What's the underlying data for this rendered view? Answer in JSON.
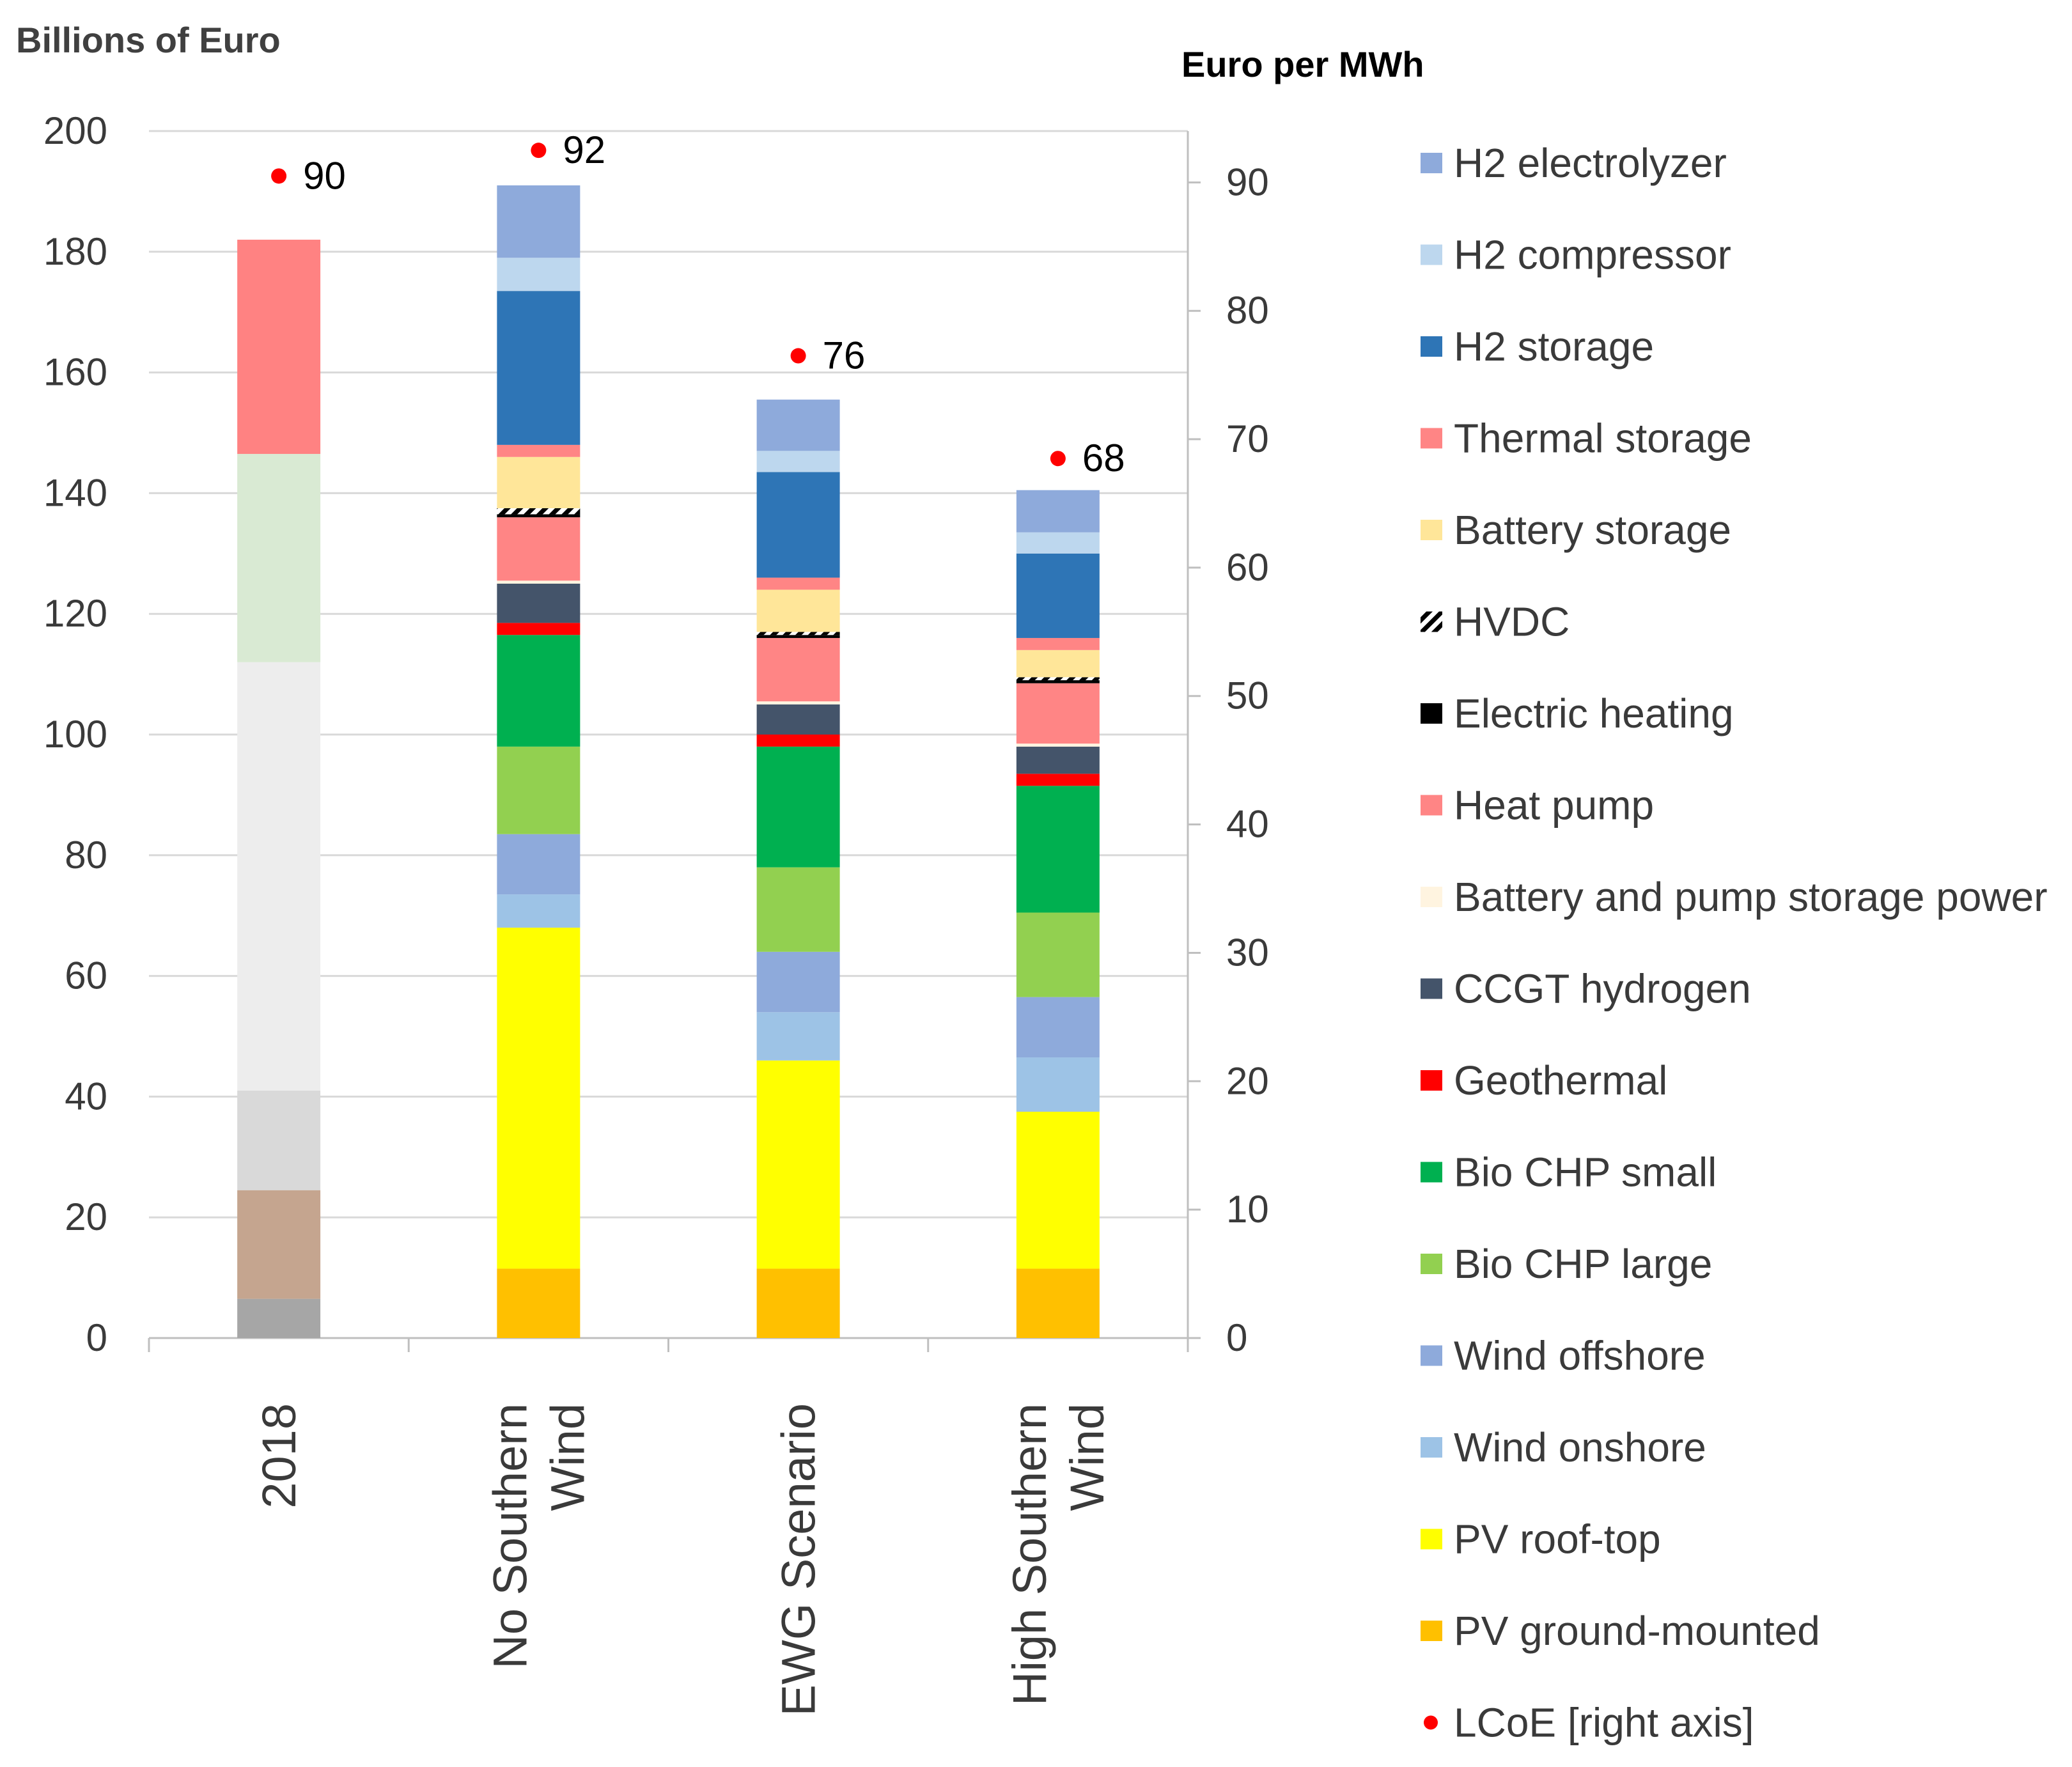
{
  "chart_data": {
    "type": "bar",
    "stacked": true,
    "y_axis_title": "Billions of Euro",
    "y2_axis_title": "Euro per MWh",
    "ylim": [
      0,
      200
    ],
    "y_ticks": [
      "0",
      "20",
      "40",
      "60",
      "80",
      "100",
      "120",
      "140",
      "160",
      "180",
      "200"
    ],
    "y2lim": [
      0,
      94
    ],
    "y2_ticks": [
      "0",
      "10",
      "20",
      "30",
      "40",
      "50",
      "60",
      "70",
      "80",
      "90"
    ],
    "categories": [
      {
        "lines": [
          "2018"
        ]
      },
      {
        "lines": [
          "No Southern",
          "Wind"
        ]
      },
      {
        "lines": [
          "EWG Scenario"
        ]
      },
      {
        "lines": [
          "High Southern",
          "Wind"
        ]
      }
    ],
    "bars": [
      {
        "category": "2018",
        "segments": [
          {
            "color": "#a6a6a6",
            "value": 6.5
          },
          {
            "color": "#c5a58f",
            "value": 18
          },
          {
            "color": "#d9d9d9",
            "value": 16.5
          },
          {
            "color": "#ededed",
            "value": 71
          },
          {
            "color": "#d9ead3",
            "value": 34.5
          },
          {
            "color": "#ff8282",
            "value": 35.5
          }
        ]
      },
      {
        "category": "No Southern Wind",
        "segments": [
          {
            "series": "PV ground-mounted",
            "value": 11.5
          },
          {
            "series": "PV roof-top",
            "value": 56.5
          },
          {
            "series": "Wind onshore",
            "value": 5.5
          },
          {
            "series": "Wind offshore",
            "value": 10
          },
          {
            "series": "Bio CHP large",
            "value": 14.5
          },
          {
            "series": "Bio CHP small",
            "value": 18.5
          },
          {
            "series": "Geothermal",
            "value": 2
          },
          {
            "series": "CCGT hydrogen",
            "value": 6.5
          },
          {
            "series": "Battery and pump storage power",
            "value": 0.5
          },
          {
            "series": "Heat pump",
            "value": 10.5
          },
          {
            "series": "Electric heating",
            "value": 0.5
          },
          {
            "series": "HVDC",
            "value": 1
          },
          {
            "series": "Battery storage",
            "value": 8.5
          },
          {
            "series": "Thermal storage",
            "value": 2
          },
          {
            "series": "H2 storage",
            "value": 25.5
          },
          {
            "series": "H2 compressor",
            "value": 5.5
          },
          {
            "series": "H2 electrolyzer",
            "value": 12
          }
        ]
      },
      {
        "category": "EWG Scenario",
        "segments": [
          {
            "series": "PV ground-mounted",
            "value": 11.5
          },
          {
            "series": "PV roof-top",
            "value": 34.5
          },
          {
            "series": "Wind onshore",
            "value": 8
          },
          {
            "series": "Wind offshore",
            "value": 10
          },
          {
            "series": "Bio CHP large",
            "value": 14
          },
          {
            "series": "Bio CHP small",
            "value": 20
          },
          {
            "series": "Geothermal",
            "value": 2
          },
          {
            "series": "CCGT hydrogen",
            "value": 5
          },
          {
            "series": "Battery and pump storage power",
            "value": 0.5
          },
          {
            "series": "Heat pump",
            "value": 10.5
          },
          {
            "series": "Electric heating",
            "value": 0.5
          },
          {
            "series": "HVDC",
            "value": 0.5
          },
          {
            "series": "Battery storage",
            "value": 7
          },
          {
            "series": "Thermal storage",
            "value": 2
          },
          {
            "series": "H2 storage",
            "value": 17.5
          },
          {
            "series": "H2 compressor",
            "value": 3.5
          },
          {
            "series": "H2 electrolyzer",
            "value": 8.5
          }
        ]
      },
      {
        "category": "High Southern Wind",
        "segments": [
          {
            "series": "PV ground-mounted",
            "value": 11.5
          },
          {
            "series": "PV roof-top",
            "value": 26
          },
          {
            "series": "Wind onshore",
            "value": 9
          },
          {
            "series": "Wind offshore",
            "value": 10
          },
          {
            "series": "Bio CHP large",
            "value": 14
          },
          {
            "series": "Bio CHP small",
            "value": 21
          },
          {
            "series": "Geothermal",
            "value": 2
          },
          {
            "series": "CCGT hydrogen",
            "value": 4.5
          },
          {
            "series": "Battery and pump storage power",
            "value": 0.5
          },
          {
            "series": "Heat pump",
            "value": 10
          },
          {
            "series": "Electric heating",
            "value": 0.5
          },
          {
            "series": "HVDC",
            "value": 0.5
          },
          {
            "series": "Battery storage",
            "value": 4.5
          },
          {
            "series": "Thermal storage",
            "value": 2
          },
          {
            "series": "H2 storage",
            "value": 14
          },
          {
            "series": "H2 compressor",
            "value": 3.5
          },
          {
            "series": "H2 electrolyzer",
            "value": 7
          }
        ]
      }
    ],
    "lcoe": {
      "name": "LCoE [right axis]",
      "color": "#ff0000",
      "values": [
        90,
        92,
        76,
        68
      ],
      "labels": [
        "90",
        "92",
        "76",
        "68"
      ]
    },
    "legend": [
      {
        "name": "H2 electrolyzer",
        "color": "#8eaadb"
      },
      {
        "name": "H2 compressor",
        "color": "#bdd7ee"
      },
      {
        "name": "H2 storage",
        "color": "#2e75b6"
      },
      {
        "name": "Thermal storage",
        "color": "#ff8585"
      },
      {
        "name": "Battery storage",
        "color": "#ffe699"
      },
      {
        "name": "HVDC",
        "color": "hatch"
      },
      {
        "name": "Electric heating",
        "color": "#000000"
      },
      {
        "name": "Heat pump",
        "color": "#ff8585"
      },
      {
        "name": "Battery and pump storage power",
        "color": "#fff4e0"
      },
      {
        "name": "CCGT hydrogen",
        "color": "#44546a"
      },
      {
        "name": "Geothermal",
        "color": "#ff0000"
      },
      {
        "name": "Bio CHP small",
        "color": "#00b050"
      },
      {
        "name": "Bio CHP large",
        "color": "#92d050"
      },
      {
        "name": "Wind offshore",
        "color": "#8eaadb"
      },
      {
        "name": "Wind onshore",
        "color": "#9dc3e6"
      },
      {
        "name": "PV roof-top",
        "color": "#ffff00"
      },
      {
        "name": "PV ground-mounted",
        "color": "#ffc000"
      },
      {
        "name": "LCoE [right axis]",
        "color": "#ff0000",
        "marker": "dot"
      }
    ],
    "grid": true,
    "legend_position": "right"
  }
}
